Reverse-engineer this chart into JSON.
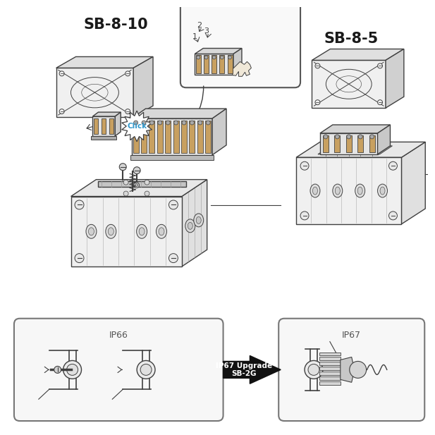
{
  "bg_color": "#ffffff",
  "line_color": "#404040",
  "label_sb810": "SB-8-10",
  "label_sb85": "SB-8-5",
  "label_ip66": "IP66",
  "label_ip67": "IP67",
  "label_click": "Click",
  "label_upgrade": "IP67 Upgrade\nSB-2G",
  "upgrade_text_color": "#ffffff",
  "click_text_color": "#3399cc",
  "sb_label_color": "#1a1a1a"
}
